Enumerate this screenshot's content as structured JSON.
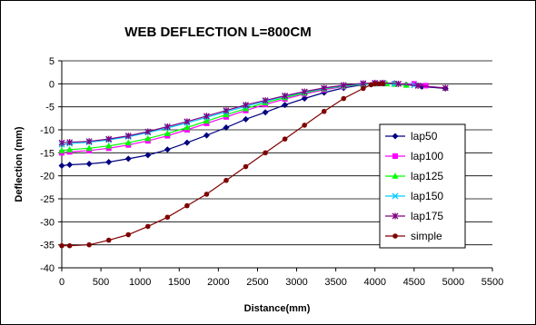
{
  "chart_data": {
    "type": "line",
    "title": "WEB DEFLECTION L=800CM",
    "xlabel": "Distance(mm)",
    "ylabel": "Deflection (mm)",
    "xlim": [
      0,
      5500
    ],
    "ylim": [
      -40,
      5
    ],
    "x_ticks": [
      0,
      500,
      1000,
      1500,
      2000,
      2500,
      3000,
      3500,
      4000,
      4500,
      5000,
      5500
    ],
    "y_ticks": [
      5,
      0,
      -5,
      -10,
      -15,
      -20,
      -25,
      -30,
      -35,
      -40
    ],
    "grid": "horizontal",
    "legend_position": "right",
    "series": [
      {
        "name": "lap50",
        "color": "#000080",
        "marker": "diamond",
        "points": [
          [
            0,
            -17.8
          ],
          [
            100,
            -17.6
          ],
          [
            350,
            -17.4
          ],
          [
            600,
            -17.0
          ],
          [
            850,
            -16.3
          ],
          [
            1100,
            -15.5
          ],
          [
            1350,
            -14.3
          ],
          [
            1600,
            -12.8
          ],
          [
            1850,
            -11.2
          ],
          [
            2100,
            -9.5
          ],
          [
            2350,
            -7.7
          ],
          [
            2600,
            -6.2
          ],
          [
            2850,
            -4.6
          ],
          [
            3100,
            -3.2
          ],
          [
            3350,
            -1.9
          ],
          [
            3600,
            -0.9
          ],
          [
            3850,
            -0.2
          ],
          [
            4000,
            0.1
          ],
          [
            4100,
            0.2
          ],
          [
            4250,
            0.1
          ],
          [
            4400,
            -0.2
          ],
          [
            4600,
            -0.6
          ],
          [
            4900,
            -1.0
          ]
        ]
      },
      {
        "name": "lap100",
        "color": "#ff00ff",
        "marker": "square",
        "points": [
          [
            0,
            -15.0
          ],
          [
            100,
            -14.8
          ],
          [
            350,
            -14.5
          ],
          [
            600,
            -14.0
          ],
          [
            850,
            -13.3
          ],
          [
            1100,
            -12.4
          ],
          [
            1350,
            -11.3
          ],
          [
            1600,
            -10.0
          ],
          [
            1850,
            -8.6
          ],
          [
            2100,
            -7.2
          ],
          [
            2350,
            -5.8
          ],
          [
            2600,
            -4.5
          ],
          [
            2850,
            -3.3
          ],
          [
            3100,
            -2.2
          ],
          [
            3350,
            -1.3
          ],
          [
            3600,
            -0.6
          ],
          [
            3850,
            -0.1
          ],
          [
            4000,
            0.1
          ],
          [
            4100,
            0.1
          ],
          [
            4250,
            0.0
          ],
          [
            4500,
            0.0
          ],
          [
            4650,
            -0.4
          ]
        ]
      },
      {
        "name": "lap125",
        "color": "#00ff00",
        "marker": "triangle",
        "points": [
          [
            0,
            -14.5
          ],
          [
            100,
            -14.3
          ],
          [
            350,
            -14.0
          ],
          [
            600,
            -13.5
          ],
          [
            850,
            -12.8
          ],
          [
            1100,
            -11.9
          ],
          [
            1350,
            -10.8
          ],
          [
            1600,
            -9.5
          ],
          [
            1850,
            -8.1
          ],
          [
            2100,
            -6.7
          ],
          [
            2350,
            -5.4
          ],
          [
            2600,
            -4.1
          ],
          [
            2850,
            -3.0
          ],
          [
            3100,
            -2.0
          ],
          [
            3350,
            -1.1
          ],
          [
            3600,
            -0.5
          ],
          [
            3850,
            -0.1
          ],
          [
            4000,
            0.0
          ],
          [
            4150,
            0.0
          ],
          [
            4250,
            -0.1
          ],
          [
            4400,
            -0.3
          ]
        ]
      },
      {
        "name": "lap150",
        "color": "#00ccff",
        "marker": "x",
        "points": [
          [
            0,
            -13.2
          ],
          [
            100,
            -13.0
          ],
          [
            350,
            -12.7
          ],
          [
            600,
            -12.2
          ],
          [
            850,
            -11.5
          ],
          [
            1100,
            -10.6
          ],
          [
            1350,
            -9.6
          ],
          [
            1600,
            -8.5
          ],
          [
            1850,
            -7.3
          ],
          [
            2100,
            -6.1
          ],
          [
            2350,
            -4.9
          ],
          [
            2600,
            -3.8
          ],
          [
            2850,
            -2.7
          ],
          [
            3100,
            -1.8
          ],
          [
            3350,
            -1.0
          ],
          [
            3600,
            -0.4
          ],
          [
            3850,
            0.0
          ],
          [
            4000,
            0.1
          ],
          [
            4100,
            0.1
          ],
          [
            4250,
            0.0
          ],
          [
            4500,
            -0.3
          ]
        ]
      },
      {
        "name": "lap175",
        "color": "#800080",
        "marker": "star",
        "points": [
          [
            0,
            -12.8
          ],
          [
            100,
            -12.7
          ],
          [
            350,
            -12.5
          ],
          [
            600,
            -12.0
          ],
          [
            850,
            -11.3
          ],
          [
            1100,
            -10.4
          ],
          [
            1350,
            -9.3
          ],
          [
            1600,
            -8.2
          ],
          [
            1850,
            -7.0
          ],
          [
            2100,
            -5.8
          ],
          [
            2350,
            -4.6
          ],
          [
            2600,
            -3.6
          ],
          [
            2850,
            -2.6
          ],
          [
            3100,
            -1.7
          ],
          [
            3350,
            -0.9
          ],
          [
            3600,
            -0.3
          ],
          [
            3850,
            0.1
          ],
          [
            4000,
            0.2
          ],
          [
            4100,
            0.2
          ],
          [
            4300,
            0.0
          ],
          [
            4550,
            -0.4
          ],
          [
            4900,
            -0.9
          ]
        ]
      },
      {
        "name": "simple",
        "color": "#800000",
        "marker": "circle",
        "points": [
          [
            0,
            -35.2
          ],
          [
            100,
            -35.2
          ],
          [
            350,
            -35.0
          ],
          [
            600,
            -34.0
          ],
          [
            850,
            -32.8
          ],
          [
            1100,
            -31.0
          ],
          [
            1350,
            -29.0
          ],
          [
            1600,
            -26.5
          ],
          [
            1850,
            -24.0
          ],
          [
            2100,
            -21.0
          ],
          [
            2350,
            -18.0
          ],
          [
            2600,
            -15.0
          ],
          [
            2850,
            -12.0
          ],
          [
            3100,
            -9.0
          ],
          [
            3350,
            -6.0
          ],
          [
            3600,
            -3.2
          ],
          [
            3850,
            -1.0
          ],
          [
            3950,
            -0.2
          ],
          [
            4000,
            0.0
          ],
          [
            4050,
            0.0
          ],
          [
            4100,
            0.0
          ]
        ]
      }
    ]
  }
}
